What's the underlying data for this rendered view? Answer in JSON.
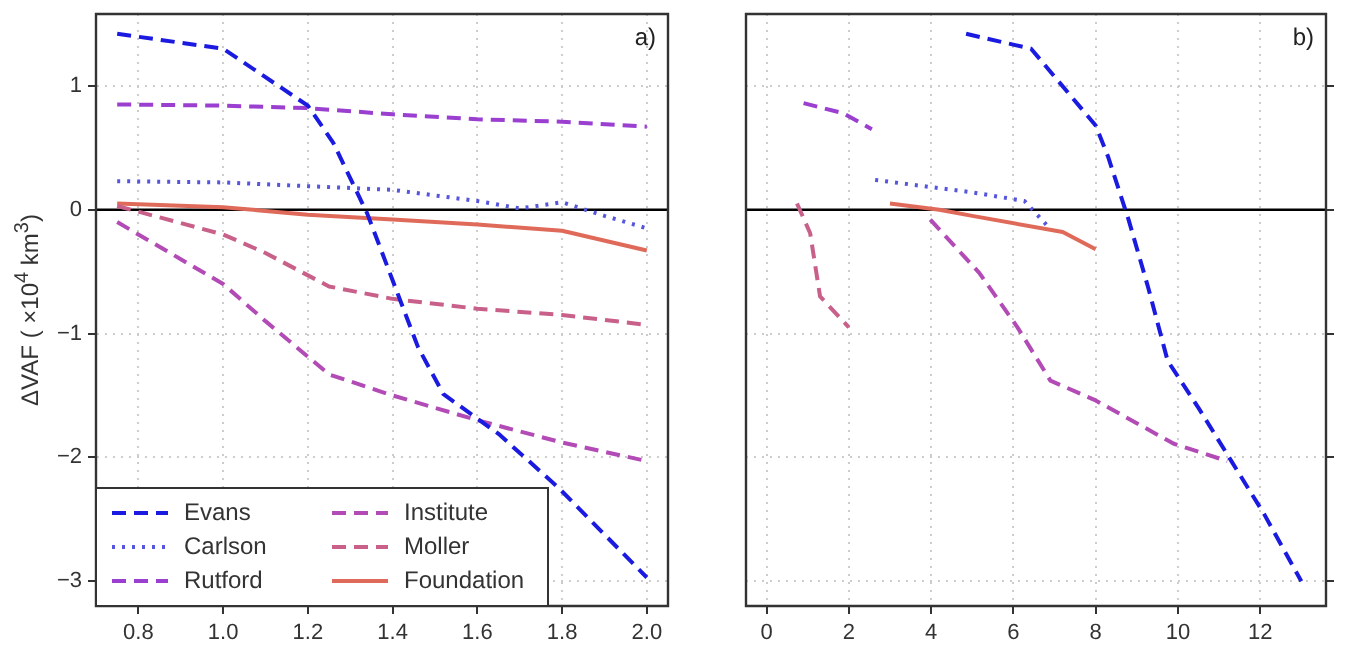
{
  "chart_data": [
    {
      "type": "line",
      "ylabel": "ΔVAF ( ×10$^{4}$ km$^{3}$)",
      "annotations": [
        "a)"
      ],
      "legend": "bottom left",
      "grid": true,
      "marker": "none",
      "xlim": [
        0.7,
        2.05
      ],
      "xticks": [
        0.8,
        {
          "value": 1,
          "label": "1.0"
        },
        1.2,
        1.4,
        1.6,
        1.8,
        {
          "value": 2,
          "label": "2.0"
        }
      ],
      "ylim": [
        -3.2,
        1.58
      ],
      "yticks": [
        {
          "value": -3,
          "label": "−3"
        },
        {
          "value": -2,
          "label": "−2"
        },
        {
          "value": -1,
          "label": "−1"
        },
        0,
        1
      ],
      "ref_lines": [
        {
          "axis": "y",
          "value": 0,
          "color": "#000000"
        }
      ],
      "series": [
        {
          "name": "Evans",
          "color": "#1a1ae0",
          "line_style": "dashed",
          "x": [
            0.75,
            1.0,
            1.2,
            1.26,
            1.34,
            1.4,
            1.46,
            1.52,
            1.65,
            1.79,
            2.0
          ],
          "values": [
            1.42,
            1.3,
            0.84,
            0.54,
            -0.03,
            -0.57,
            -1.11,
            -1.49,
            -1.81,
            -2.24,
            -2.97
          ]
        },
        {
          "name": "Carlson",
          "color": "#5555dd",
          "line_style": "dotted",
          "x": [
            0.75,
            1.0,
            1.2,
            1.4,
            1.6,
            1.7,
            1.8,
            1.9,
            2.0
          ],
          "values": [
            0.23,
            0.22,
            0.19,
            0.16,
            0.07,
            0.01,
            0.06,
            -0.05,
            -0.15
          ]
        },
        {
          "name": "Rutford",
          "color": "#9a3fd0",
          "line_style": "dashed",
          "x": [
            0.75,
            1.0,
            1.2,
            1.4,
            1.6,
            1.8,
            2.0
          ],
          "values": [
            0.85,
            0.84,
            0.82,
            0.77,
            0.73,
            0.71,
            0.67
          ]
        },
        {
          "name": "Institute",
          "color": "#b24bb5",
          "line_style": "dashed",
          "x": [
            0.75,
            1.0,
            1.1,
            1.25,
            1.4,
            1.6,
            1.8,
            2.0
          ],
          "values": [
            -0.1,
            -0.6,
            -0.9,
            -1.33,
            -1.5,
            -1.7,
            -1.88,
            -2.03
          ]
        },
        {
          "name": "Moller",
          "color": "#c8608a",
          "line_style": "dashed",
          "x": [
            0.75,
            1.0,
            1.1,
            1.25,
            1.4,
            1.6,
            1.8,
            2.0
          ],
          "values": [
            0.03,
            -0.2,
            -0.35,
            -0.62,
            -0.72,
            -0.8,
            -0.85,
            -0.93
          ]
        },
        {
          "name": "Foundation",
          "color": "#e06a5a",
          "line_style": "solid",
          "x": [
            0.75,
            1.0,
            1.2,
            1.4,
            1.6,
            1.8,
            2.0
          ],
          "values": [
            0.05,
            0.02,
            -0.04,
            -0.08,
            -0.12,
            -0.17,
            -0.33
          ]
        }
      ]
    },
    {
      "type": "line",
      "annotations": [
        "b)"
      ],
      "grid": true,
      "marker": "none",
      "tick_labels": "x",
      "xlim": [
        -0.5,
        13.6
      ],
      "xticks": [
        0,
        2,
        4,
        6,
        8,
        10,
        12
      ],
      "ylim": [
        -3.2,
        1.58
      ],
      "yticks": [
        -3,
        -2,
        -1,
        0,
        1
      ],
      "ref_lines": [
        {
          "axis": "y",
          "value": 0,
          "color": "#000000"
        }
      ],
      "series": [
        {
          "color": "#1a1ae0",
          "line_style": "dashed",
          "x": [
            4.85,
            6.43,
            8.0,
            8.3,
            8.8,
            9.27,
            9.75,
            10.5,
            11.3,
            12.1,
            13.0
          ],
          "values": [
            1.42,
            1.3,
            0.68,
            0.43,
            -0.08,
            -0.62,
            -1.22,
            -1.6,
            -2.03,
            -2.46,
            -3.0
          ]
        },
        {
          "color": "#5555dd",
          "line_style": "dotted",
          "x": [
            2.64,
            5.0,
            6.27,
            6.8
          ],
          "values": [
            0.24,
            0.14,
            0.07,
            -0.12
          ]
        },
        {
          "color": "#9a3fd0",
          "line_style": "dashed",
          "x": [
            0.9,
            1.85,
            2.56
          ],
          "values": [
            0.86,
            0.78,
            0.65
          ]
        },
        {
          "color": "#b24bb5",
          "line_style": "dashed",
          "x": [
            3.98,
            5.17,
            6.1,
            6.9,
            8.0,
            9.9,
            11.2
          ],
          "values": [
            -0.08,
            -0.51,
            -0.95,
            -1.38,
            -1.54,
            -1.89,
            -2.03
          ]
        },
        {
          "color": "#c8608a",
          "line_style": "dashed",
          "x": [
            0.74,
            1.06,
            1.3,
            2.0
          ],
          "values": [
            0.05,
            -0.19,
            -0.7,
            -0.95
          ]
        },
        {
          "color": "#e06a5a",
          "line_style": "solid",
          "x": [
            3.0,
            4.2,
            5.0,
            7.2,
            8.0
          ],
          "values": [
            0.05,
            0.0,
            -0.05,
            -0.18,
            -0.32
          ]
        }
      ]
    }
  ]
}
